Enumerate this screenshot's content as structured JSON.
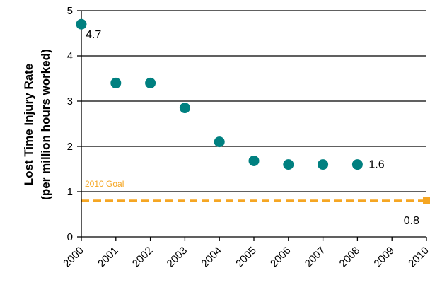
{
  "chart_data": {
    "type": "scatter",
    "title": "",
    "xlabel": "",
    "ylabel": "Lost Time Injury Rate",
    "ylabel_line2": "(per million hours worked)",
    "ylim": [
      0,
      5
    ],
    "y_ticks": [
      "0",
      "1",
      "2",
      "3",
      "4",
      "5"
    ],
    "x_ticks": [
      "2000",
      "2001",
      "2002",
      "2003",
      "2004",
      "2005",
      "2006",
      "2007",
      "2008",
      "2009",
      "2010"
    ],
    "grid": "horizontal",
    "series": [
      {
        "x": [
          2000,
          2001,
          2002,
          2003,
          2004,
          2005,
          2006,
          2007,
          2008
        ],
        "y": [
          4.7,
          3.4,
          3.4,
          2.85,
          2.1,
          1.68,
          1.6,
          1.6,
          1.6
        ],
        "color": "#008080"
      }
    ],
    "data_labels": [
      {
        "x": 2000,
        "y": 4.7,
        "text": "4.7"
      },
      {
        "x": 2008,
        "y": 1.6,
        "text": "1.6"
      }
    ],
    "goal": {
      "label": "2010 Goal",
      "value": 0.8,
      "value_label": "0.8",
      "x_start": 2000,
      "x_end": 2010,
      "color": "#F5A623"
    }
  }
}
